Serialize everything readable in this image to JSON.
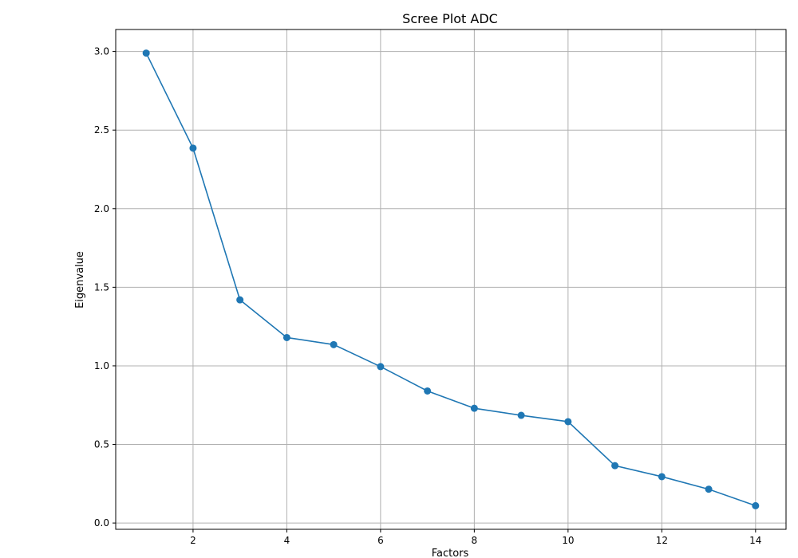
{
  "chart_data": {
    "type": "line",
    "title": "Scree Plot ADC",
    "xlabel": "Factors",
    "ylabel": "Eigenvalue",
    "x": [
      1,
      2,
      3,
      4,
      5,
      6,
      7,
      8,
      9,
      10,
      11,
      12,
      13,
      14
    ],
    "series": [
      {
        "values": [
          2.99,
          2.385,
          1.42,
          1.18,
          1.135,
          0.995,
          0.84,
          0.73,
          0.685,
          0.645,
          0.365,
          0.295,
          0.215,
          0.11
        ]
      }
    ],
    "xlim": [
      0.35,
      14.65
    ],
    "ylim": [
      -0.04,
      3.14
    ],
    "xticks": [
      2,
      4,
      6,
      8,
      10,
      12,
      14
    ],
    "yticks": [
      0.0,
      0.5,
      1.0,
      1.5,
      2.0,
      2.5,
      3.0
    ],
    "xtick_labels": [
      "2",
      "4",
      "6",
      "8",
      "10",
      "12",
      "14"
    ],
    "ytick_labels": [
      "0.0",
      "0.5",
      "1.0",
      "1.5",
      "2.0",
      "2.5",
      "3.0"
    ],
    "grid": true,
    "markers": true,
    "line_color": "#1f77b4"
  }
}
